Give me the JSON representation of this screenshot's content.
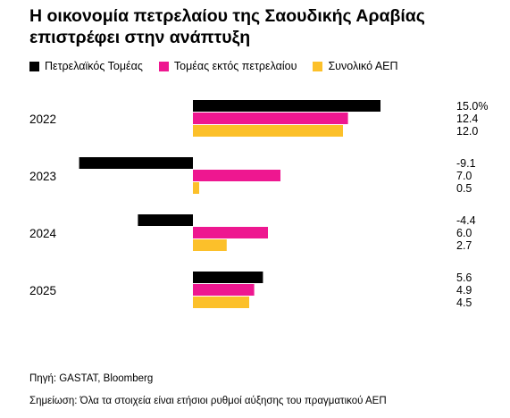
{
  "title": "Η οικονομία πετρελαίου της Σαουδικής Αραβίας επιστρέφει στην ανάπτυξη",
  "source": "Πηγή: GASTAT, Bloomberg",
  "note": "Σημείωση: Όλα τα στοιχεία είναι ετήσιοι ρυθμοί αύξησης του πραγματικού ΑΕΠ",
  "chart_data": {
    "type": "bar",
    "orientation": "horizontal",
    "categories": [
      "2022",
      "2023",
      "2024",
      "2025"
    ],
    "series": [
      {
        "name": "Πετρελαϊκός Τομέας",
        "color": "#000000",
        "values": [
          15.0,
          -9.1,
          -4.4,
          5.6
        ],
        "labels": [
          "15.0%",
          "-9.1",
          "-4.4",
          "5.6"
        ]
      },
      {
        "name": "Τομέας εκτός πετρελαίου",
        "color": "#ee1790",
        "values": [
          12.4,
          7.0,
          6.0,
          4.9
        ],
        "labels": [
          "12.4",
          "7.0",
          "6.0",
          "4.9"
        ]
      },
      {
        "name": "Συνολικό ΑΕΠ",
        "color": "#fcc02a",
        "values": [
          12.0,
          0.5,
          2.7,
          4.5
        ],
        "labels": [
          "12.0",
          "0.5",
          "2.7",
          "4.5"
        ]
      }
    ],
    "legend_position": "top-left",
    "grid": false
  }
}
